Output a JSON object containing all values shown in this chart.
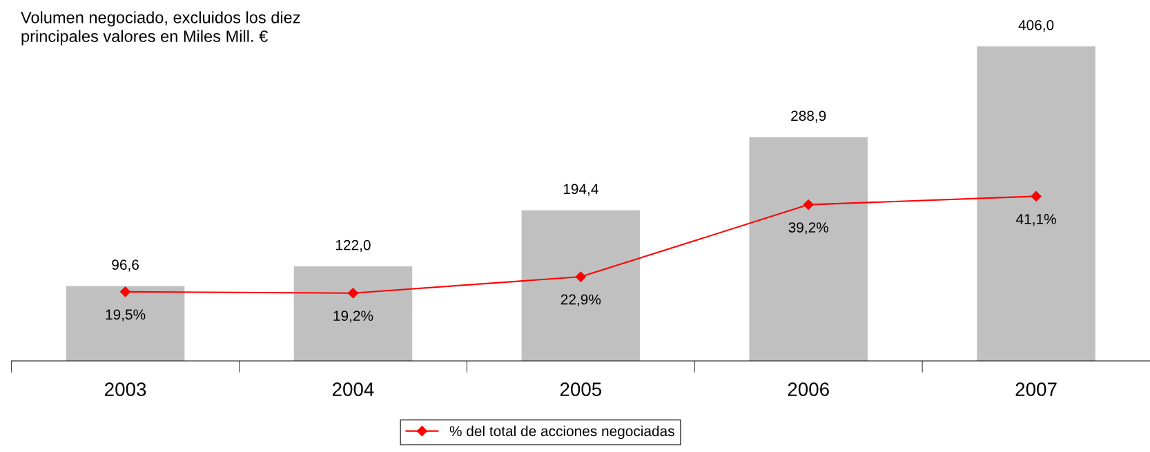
{
  "chart_data": {
    "type": "bar",
    "title": "Volumen negociado, excluidos los diez\nprincipales valores en Miles Mill. €",
    "categories": [
      "2003",
      "2004",
      "2005",
      "2006",
      "2007"
    ],
    "series": [
      {
        "color": "#c0c0c0",
        "values": [
          96.6,
          122.0,
          194.4,
          288.9,
          406.0
        ],
        "value_labels": [
          "96,6",
          "122,0",
          "194,4",
          "288,9",
          "406,0"
        ]
      },
      {
        "type": "line",
        "axis": "y2",
        "name": "% del total de acciones negociadas",
        "color": "#ff0000",
        "values": [
          19.5,
          19.2,
          22.9,
          39.2,
          41.1
        ],
        "value_labels": [
          "19,5%",
          "19,2%",
          "22,9%",
          "39,2%",
          "41,1%"
        ],
        "marker": "diamond",
        "line_style": "solid"
      }
    ],
    "tick_labels": "x",
    "legend": "bottom",
    "grid": false
  }
}
